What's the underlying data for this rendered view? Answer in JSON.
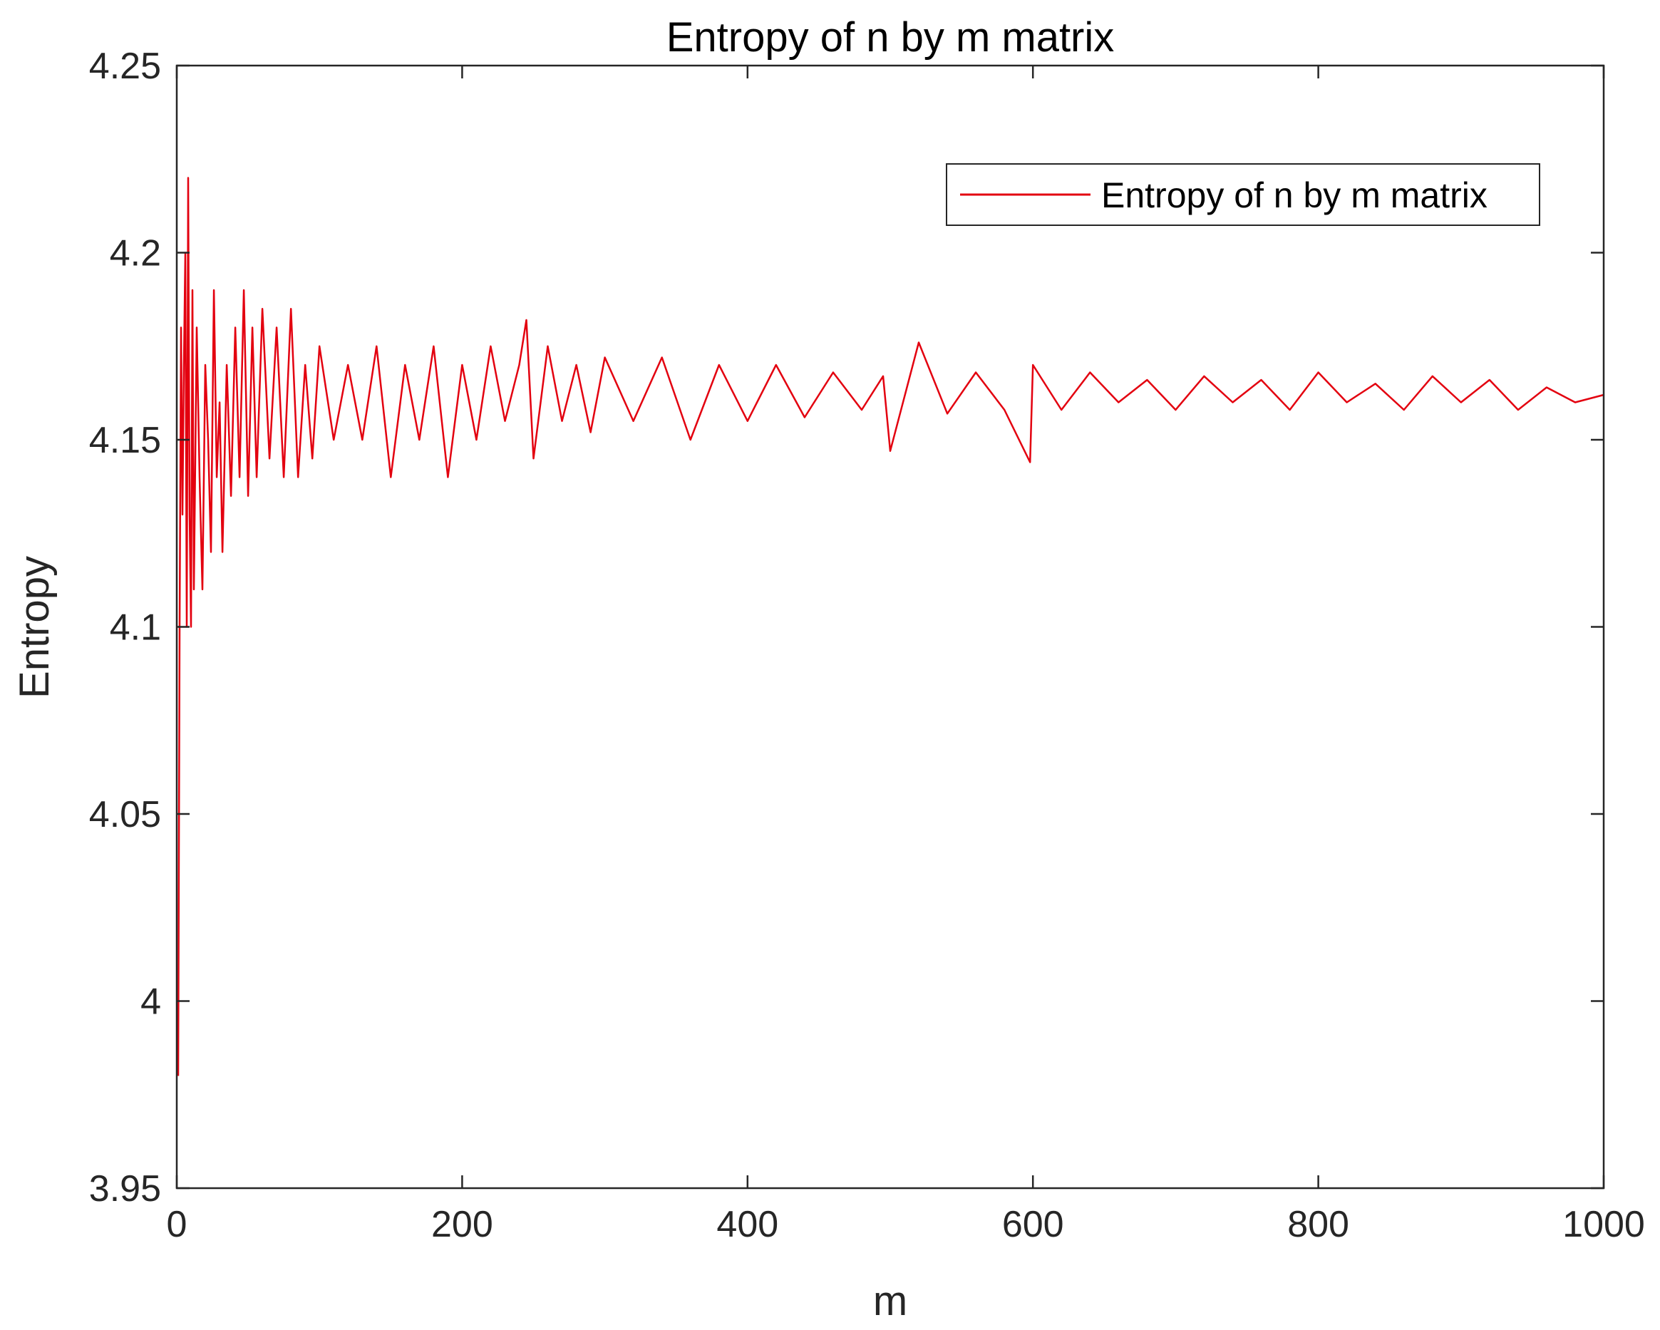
{
  "chart_data": {
    "type": "line",
    "title": "Entropy of n by m matrix",
    "xlabel": "m",
    "ylabel": "Entropy",
    "xlim": [
      0,
      1000
    ],
    "ylim": [
      3.95,
      4.25
    ],
    "x_ticks": [
      0,
      200,
      400,
      600,
      800,
      1000
    ],
    "x_tick_labels": [
      "0",
      "200",
      "400",
      "600",
      "800",
      "1000"
    ],
    "y_ticks": [
      3.95,
      4.0,
      4.05,
      4.1,
      4.15,
      4.2,
      4.25
    ],
    "y_tick_labels": [
      "3.95",
      "4",
      "4.05",
      "4.1",
      "4.15",
      "4.2",
      "4.25"
    ],
    "grid": false,
    "legend_position": "top-right",
    "series": [
      {
        "name": "Entropy of n by m matrix",
        "color": "#e3000f",
        "x": [
          1,
          2,
          3,
          4,
          5,
          6,
          7,
          8,
          9,
          10,
          11,
          12,
          14,
          16,
          18,
          20,
          22,
          24,
          26,
          28,
          30,
          32,
          35,
          38,
          41,
          44,
          47,
          50,
          53,
          56,
          60,
          65,
          70,
          75,
          80,
          85,
          90,
          95,
          100,
          110,
          120,
          130,
          140,
          150,
          160,
          170,
          180,
          190,
          200,
          210,
          220,
          230,
          240,
          245,
          250,
          260,
          270,
          280,
          290,
          300,
          320,
          340,
          360,
          380,
          400,
          420,
          440,
          460,
          480,
          495,
          500,
          520,
          540,
          560,
          580,
          598,
          600,
          620,
          640,
          660,
          680,
          700,
          720,
          740,
          760,
          780,
          800,
          820,
          840,
          860,
          880,
          900,
          920,
          940,
          960,
          980,
          1000
        ],
        "y": [
          3.98,
          4.1,
          4.18,
          4.13,
          4.17,
          4.2,
          4.1,
          4.22,
          4.13,
          4.1,
          4.19,
          4.11,
          4.18,
          4.14,
          4.11,
          4.17,
          4.15,
          4.12,
          4.19,
          4.14,
          4.16,
          4.12,
          4.17,
          4.135,
          4.18,
          4.14,
          4.19,
          4.135,
          4.18,
          4.14,
          4.185,
          4.145,
          4.18,
          4.14,
          4.185,
          4.14,
          4.17,
          4.145,
          4.175,
          4.15,
          4.17,
          4.15,
          4.175,
          4.14,
          4.17,
          4.15,
          4.175,
          4.14,
          4.17,
          4.15,
          4.175,
          4.155,
          4.17,
          4.182,
          4.145,
          4.175,
          4.155,
          4.17,
          4.152,
          4.172,
          4.155,
          4.172,
          4.15,
          4.17,
          4.155,
          4.17,
          4.156,
          4.168,
          4.158,
          4.167,
          4.147,
          4.176,
          4.157,
          4.168,
          4.158,
          4.144,
          4.17,
          4.158,
          4.168,
          4.16,
          4.166,
          4.158,
          4.167,
          4.16,
          4.166,
          4.158,
          4.168,
          4.16,
          4.165,
          4.158,
          4.167,
          4.16,
          4.166,
          4.158,
          4.164,
          4.16,
          4.162
        ]
      }
    ]
  }
}
